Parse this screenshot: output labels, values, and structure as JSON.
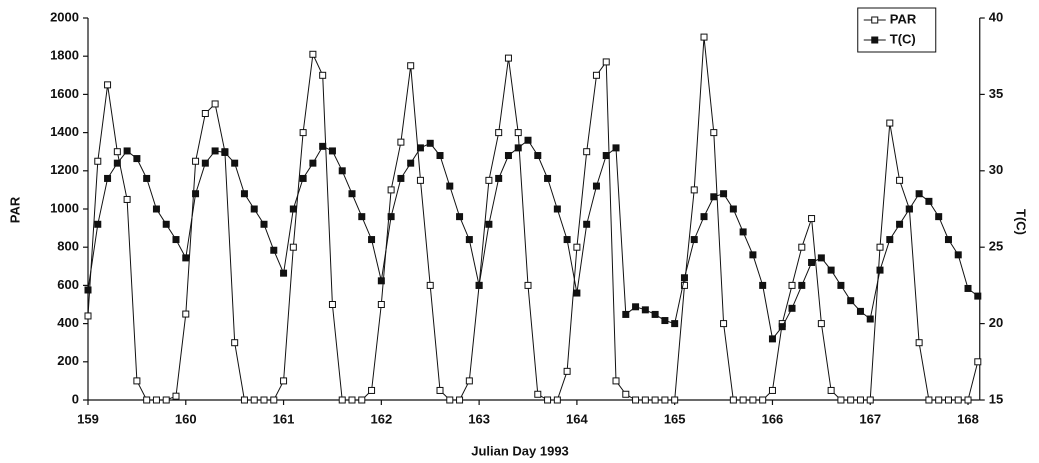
{
  "chart_data": {
    "type": "line",
    "x_label": "Julian Day 1993",
    "y_label": "PAR",
    "y2_label": "T(C)",
    "x": [
      159.0,
      159.1,
      159.2,
      159.3,
      159.4,
      159.5,
      159.6,
      159.7,
      159.8,
      159.9,
      160.0,
      160.1,
      160.2,
      160.3,
      160.4,
      160.5,
      160.6,
      160.7,
      160.8,
      160.9,
      161.0,
      161.1,
      161.2,
      161.3,
      161.4,
      161.5,
      161.6,
      161.7,
      161.8,
      161.9,
      162.0,
      162.1,
      162.2,
      162.3,
      162.4,
      162.5,
      162.6,
      162.7,
      162.8,
      162.9,
      163.0,
      163.1,
      163.2,
      163.3,
      163.4,
      163.5,
      163.6,
      163.7,
      163.8,
      163.9,
      164.0,
      164.1,
      164.2,
      164.3,
      164.4,
      164.5,
      164.6,
      164.7,
      164.8,
      164.9,
      165.0,
      165.1,
      165.2,
      165.3,
      165.4,
      165.5,
      165.6,
      165.7,
      165.8,
      165.9,
      166.0,
      166.1,
      166.2,
      166.3,
      166.4,
      166.5,
      166.6,
      166.7,
      166.8,
      166.9,
      167.0,
      167.1,
      167.2,
      167.3,
      167.4,
      167.5,
      167.6,
      167.7,
      167.8,
      167.9,
      168.0,
      168.1
    ],
    "series": [
      {
        "name": "PAR",
        "color": "#111111",
        "marker": "open",
        "values": [
          440,
          1250,
          1650,
          1300,
          1050,
          100,
          0,
          0,
          0,
          20,
          450,
          1250,
          1500,
          1550,
          1300,
          300,
          0,
          0,
          0,
          0,
          100,
          800,
          1400,
          1810,
          1700,
          500,
          0,
          0,
          0,
          50,
          500,
          1100,
          1350,
          1750,
          1150,
          600,
          50,
          0,
          0,
          100,
          600,
          1150,
          1400,
          1790,
          1400,
          600,
          30,
          0,
          0,
          150,
          800,
          1300,
          1700,
          1770,
          100,
          30,
          0,
          0,
          0,
          0,
          0,
          600,
          1100,
          1900,
          1400,
          400,
          0,
          0,
          0,
          0,
          50,
          400,
          600,
          800,
          950,
          400,
          50,
          0,
          0,
          0,
          0,
          800,
          1450,
          1150,
          1000,
          300,
          0,
          0,
          0,
          0,
          0,
          200
        ]
      },
      {
        "name": "T(C)",
        "color": "#111111",
        "marker": "filled",
        "axis": "y2",
        "values": [
          22.2,
          26.5,
          29.5,
          30.5,
          31.3,
          30.8,
          29.5,
          27.5,
          26.5,
          25.5,
          24.3,
          28.5,
          30.5,
          31.3,
          31.2,
          30.5,
          28.5,
          27.5,
          26.5,
          24.8,
          23.3,
          27.5,
          29.5,
          30.5,
          31.6,
          31.3,
          30,
          28.5,
          27,
          25.5,
          22.8,
          27,
          29.5,
          30.5,
          31.5,
          31.8,
          31,
          29,
          27,
          25.5,
          22.5,
          26.5,
          29.5,
          31,
          31.5,
          32,
          31,
          29.5,
          27.5,
          25.5,
          22,
          26.5,
          29,
          31,
          31.5,
          20.6,
          21.1,
          20.9,
          20.6,
          20.2,
          20,
          23,
          25.5,
          27,
          28.3,
          28.5,
          27.5,
          26,
          24.5,
          22.5,
          19,
          19.8,
          21,
          22.5,
          24,
          24.3,
          23.5,
          22.5,
          21.5,
          20.8,
          20.3,
          23.5,
          25.5,
          26.5,
          27.5,
          28.5,
          28,
          27,
          25.5,
          24.5,
          22.3,
          21.8
        ]
      }
    ],
    "xlim": [
      159,
      168.12
    ],
    "xticks": [
      159,
      160,
      161,
      162,
      163,
      164,
      165,
      166,
      167,
      168
    ],
    "ylim": [
      0,
      2000
    ],
    "yticks": [
      0,
      200,
      400,
      600,
      800,
      1000,
      1200,
      1400,
      1600,
      1800,
      2000
    ],
    "y2lim": [
      15,
      40
    ],
    "y2ticks": [
      15,
      20,
      25,
      30,
      35,
      40
    ],
    "grid": false,
    "legend": "top-right"
  }
}
